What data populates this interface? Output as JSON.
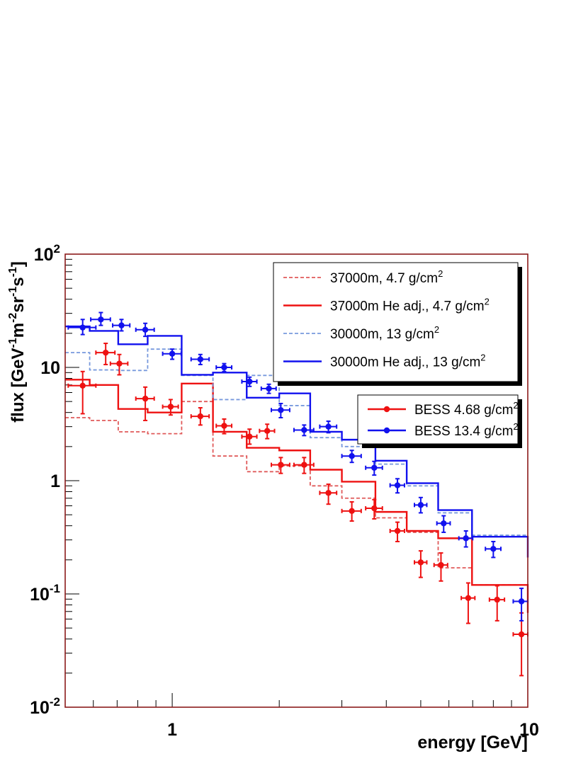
{
  "chart_data": {
    "type": "line",
    "title": "",
    "xlabel": "energy [GeV]",
    "ylabel": "flux [GeV⁻¹m⁻²sr⁻¹s⁻¹]",
    "x_scale": "log",
    "y_scale": "log",
    "xlim": [
      0.5,
      10
    ],
    "ylim": [
      0.01,
      100
    ],
    "x_tick_labels": [
      {
        "value": 1,
        "label": "1"
      },
      {
        "value": 10,
        "label": "10"
      }
    ],
    "y_tick_labels": [
      {
        "value": 0.01,
        "base": "10",
        "exp": "-2"
      },
      {
        "value": 0.1,
        "base": "10",
        "exp": "-1"
      },
      {
        "value": 1,
        "base": "1",
        "exp": ""
      },
      {
        "value": 10,
        "base": "10",
        "exp": ""
      },
      {
        "value": 100,
        "base": "10",
        "exp": "2"
      }
    ],
    "legends": [
      {
        "placement": "top-right",
        "entries": [
          {
            "text": "37000m, 4.7 g/cm",
            "sup": "2",
            "series": "37000m, 4.7 g/cm2"
          },
          {
            "text": "37000m He adj., 4.7 g/cm",
            "sup": "2",
            "series": "37000m He adj., 4.7 g/cm2"
          },
          {
            "text": "30000m, 13 g/cm",
            "sup": "2",
            "series": "30000m, 13 g/cm2"
          },
          {
            "text": "30000m He adj., 13 g/cm",
            "sup": "2",
            "series": "30000m He adj., 13 g/cm2"
          }
        ]
      },
      {
        "placement": "middle-right",
        "entries": [
          {
            "text": "BESS 4.68 g/cm",
            "sup": "2",
            "series": "BESS 4.68 g/cm2"
          },
          {
            "text": "BESS 13.4 g/cm",
            "sup": "2",
            "series": "BESS 13.4 g/cm2"
          }
        ]
      }
    ],
    "series": [
      {
        "name": "37000m, 4.7 g/cm2",
        "kind": "step",
        "color": "#e05a5a",
        "dash": true,
        "edges": [
          0.5,
          0.586,
          0.705,
          0.853,
          1.063,
          1.302,
          1.62,
          2.0,
          2.444,
          3.0,
          3.728,
          4.566,
          5.597,
          6.969,
          10
        ],
        "values": [
          3.6,
          3.4,
          2.7,
          2.6,
          5.0,
          1.65,
          1.2,
          1.35,
          0.9,
          0.7,
          0.47,
          0.35,
          0.17,
          0.12,
          0.068
        ]
      },
      {
        "name": "37000m He adj., 4.7 g/cm2",
        "kind": "step",
        "color": "#ee1111",
        "dash": false,
        "edges": [
          0.5,
          0.586,
          0.705,
          0.853,
          1.063,
          1.302,
          1.62,
          2.0,
          2.444,
          3.0,
          3.728,
          4.566,
          5.597,
          6.969,
          10
        ],
        "values": [
          7.8,
          7.0,
          4.3,
          4.0,
          7.2,
          2.7,
          1.95,
          1.85,
          1.25,
          0.98,
          0.53,
          0.36,
          0.31,
          0.12,
          0.068
        ]
      },
      {
        "name": "30000m, 13 g/cm2",
        "kind": "step",
        "color": "#7799dd",
        "dash": true,
        "edges": [
          0.5,
          0.586,
          0.705,
          0.853,
          1.063,
          1.302,
          1.62,
          2.0,
          2.444,
          3.0,
          3.728,
          4.566,
          5.597,
          6.969,
          10
        ],
        "values": [
          13.5,
          9.5,
          9.4,
          14.5,
          8.5,
          5.2,
          8.5,
          4.6,
          2.4,
          2.0,
          1.4,
          0.9,
          0.52,
          0.33,
          0.21
        ]
      },
      {
        "name": "30000m He adj., 13 g/cm2",
        "kind": "step",
        "color": "#1111ee",
        "dash": false,
        "edges": [
          0.5,
          0.586,
          0.705,
          0.853,
          1.063,
          1.302,
          1.62,
          2.0,
          2.444,
          3.0,
          3.728,
          4.566,
          5.597,
          6.969,
          10
        ],
        "values": [
          23,
          21,
          16,
          19,
          8.6,
          9.0,
          5.4,
          5.9,
          2.7,
          2.3,
          1.5,
          0.95,
          0.55,
          0.32,
          0.21
        ]
      },
      {
        "name": "BESS 4.68 g/cm2",
        "kind": "points",
        "color": "#ee1111",
        "points": [
          {
            "x": 0.56,
            "y": 6.9,
            "xlo": 0.51,
            "xhi": 0.61,
            "ylo": 3.9,
            "yhi": 9.2
          },
          {
            "x": 0.65,
            "y": 13.5,
            "xlo": 0.61,
            "xhi": 0.69,
            "ylo": 10.6,
            "yhi": 16.3
          },
          {
            "x": 0.71,
            "y": 10.8,
            "xlo": 0.67,
            "xhi": 0.75,
            "ylo": 8.6,
            "yhi": 13.0
          },
          {
            "x": 0.84,
            "y": 5.3,
            "xlo": 0.79,
            "xhi": 0.89,
            "ylo": 3.4,
            "yhi": 6.7
          },
          {
            "x": 0.99,
            "y": 4.5,
            "xlo": 0.94,
            "xhi": 1.04,
            "ylo": 3.8,
            "yhi": 5.2
          },
          {
            "x": 1.2,
            "y": 3.7,
            "xlo": 1.13,
            "xhi": 1.27,
            "ylo": 3.1,
            "yhi": 4.4
          },
          {
            "x": 1.4,
            "y": 3.05,
            "xlo": 1.33,
            "xhi": 1.47,
            "ylo": 2.6,
            "yhi": 3.5
          },
          {
            "x": 1.65,
            "y": 2.45,
            "xlo": 1.57,
            "xhi": 1.73,
            "ylo": 2.1,
            "yhi": 2.85
          },
          {
            "x": 1.85,
            "y": 2.75,
            "xlo": 1.76,
            "xhi": 1.94,
            "ylo": 2.35,
            "yhi": 3.15
          },
          {
            "x": 2.02,
            "y": 1.38,
            "xlo": 1.9,
            "xhi": 2.14,
            "ylo": 1.16,
            "yhi": 1.6
          },
          {
            "x": 2.35,
            "y": 1.38,
            "xlo": 2.2,
            "xhi": 2.5,
            "ylo": 1.16,
            "yhi": 1.6
          },
          {
            "x": 2.75,
            "y": 0.78,
            "xlo": 2.6,
            "xhi": 2.9,
            "ylo": 0.62,
            "yhi": 0.93
          },
          {
            "x": 3.2,
            "y": 0.54,
            "xlo": 3.0,
            "xhi": 3.4,
            "ylo": 0.44,
            "yhi": 0.65
          },
          {
            "x": 3.7,
            "y": 0.57,
            "xlo": 3.5,
            "xhi": 3.9,
            "ylo": 0.46,
            "yhi": 0.68
          },
          {
            "x": 4.3,
            "y": 0.36,
            "xlo": 4.1,
            "xhi": 4.5,
            "ylo": 0.29,
            "yhi": 0.43
          },
          {
            "x": 5.0,
            "y": 0.19,
            "xlo": 4.8,
            "xhi": 5.2,
            "ylo": 0.14,
            "yhi": 0.24
          },
          {
            "x": 5.7,
            "y": 0.18,
            "xlo": 5.45,
            "xhi": 5.95,
            "ylo": 0.13,
            "yhi": 0.23
          },
          {
            "x": 6.8,
            "y": 0.092,
            "xlo": 6.5,
            "xhi": 7.1,
            "ylo": 0.055,
            "yhi": 0.125
          },
          {
            "x": 8.2,
            "y": 0.089,
            "xlo": 7.8,
            "xhi": 8.6,
            "ylo": 0.058,
            "yhi": 0.118
          },
          {
            "x": 9.6,
            "y": 0.044,
            "xlo": 9.1,
            "xhi": 10.0,
            "ylo": 0.019,
            "yhi": 0.068
          }
        ]
      },
      {
        "name": "BESS 13.4 g/cm2",
        "kind": "points",
        "color": "#1111ee",
        "points": [
          {
            "x": 0.56,
            "y": 22.5,
            "xlo": 0.51,
            "xhi": 0.61,
            "ylo": 19.5,
            "yhi": 26.5
          },
          {
            "x": 0.63,
            "y": 26.5,
            "xlo": 0.59,
            "xhi": 0.67,
            "ylo": 23.5,
            "yhi": 30.5
          },
          {
            "x": 0.72,
            "y": 23.5,
            "xlo": 0.68,
            "xhi": 0.76,
            "ylo": 21.0,
            "yhi": 26.5
          },
          {
            "x": 0.84,
            "y": 21.5,
            "xlo": 0.79,
            "xhi": 0.89,
            "ylo": 18.8,
            "yhi": 24.5
          },
          {
            "x": 1.0,
            "y": 13.2,
            "xlo": 0.94,
            "xhi": 1.06,
            "ylo": 11.8,
            "yhi": 14.5
          },
          {
            "x": 1.2,
            "y": 11.8,
            "xlo": 1.13,
            "xhi": 1.27,
            "ylo": 10.6,
            "yhi": 13.0
          },
          {
            "x": 1.4,
            "y": 10.0,
            "xlo": 1.33,
            "xhi": 1.47,
            "ylo": 9.2,
            "yhi": 10.8
          },
          {
            "x": 1.65,
            "y": 7.5,
            "xlo": 1.57,
            "xhi": 1.73,
            "ylo": 6.8,
            "yhi": 8.2
          },
          {
            "x": 1.87,
            "y": 6.5,
            "xlo": 1.78,
            "xhi": 1.96,
            "ylo": 5.9,
            "yhi": 7.1
          },
          {
            "x": 2.02,
            "y": 4.2,
            "xlo": 1.9,
            "xhi": 2.14,
            "ylo": 3.6,
            "yhi": 4.8
          },
          {
            "x": 2.35,
            "y": 2.8,
            "xlo": 2.2,
            "xhi": 2.5,
            "ylo": 2.5,
            "yhi": 3.1
          },
          {
            "x": 2.75,
            "y": 3.0,
            "xlo": 2.6,
            "xhi": 2.9,
            "ylo": 2.65,
            "yhi": 3.35
          },
          {
            "x": 3.2,
            "y": 1.65,
            "xlo": 3.0,
            "xhi": 3.4,
            "ylo": 1.45,
            "yhi": 1.85
          },
          {
            "x": 3.7,
            "y": 1.3,
            "xlo": 3.5,
            "xhi": 3.9,
            "ylo": 1.12,
            "yhi": 1.48
          },
          {
            "x": 4.3,
            "y": 0.91,
            "xlo": 4.1,
            "xhi": 4.5,
            "ylo": 0.78,
            "yhi": 1.04
          },
          {
            "x": 5.0,
            "y": 0.61,
            "xlo": 4.8,
            "xhi": 5.2,
            "ylo": 0.52,
            "yhi": 0.71
          },
          {
            "x": 5.8,
            "y": 0.42,
            "xlo": 5.55,
            "xhi": 6.05,
            "ylo": 0.35,
            "yhi": 0.49
          },
          {
            "x": 6.7,
            "y": 0.31,
            "xlo": 6.4,
            "xhi": 7.0,
            "ylo": 0.26,
            "yhi": 0.36
          },
          {
            "x": 8.0,
            "y": 0.25,
            "xlo": 7.6,
            "xhi": 8.4,
            "ylo": 0.21,
            "yhi": 0.29
          },
          {
            "x": 9.6,
            "y": 0.086,
            "xlo": 9.1,
            "xhi": 10.0,
            "ylo": 0.058,
            "yhi": 0.112
          }
        ]
      }
    ]
  }
}
